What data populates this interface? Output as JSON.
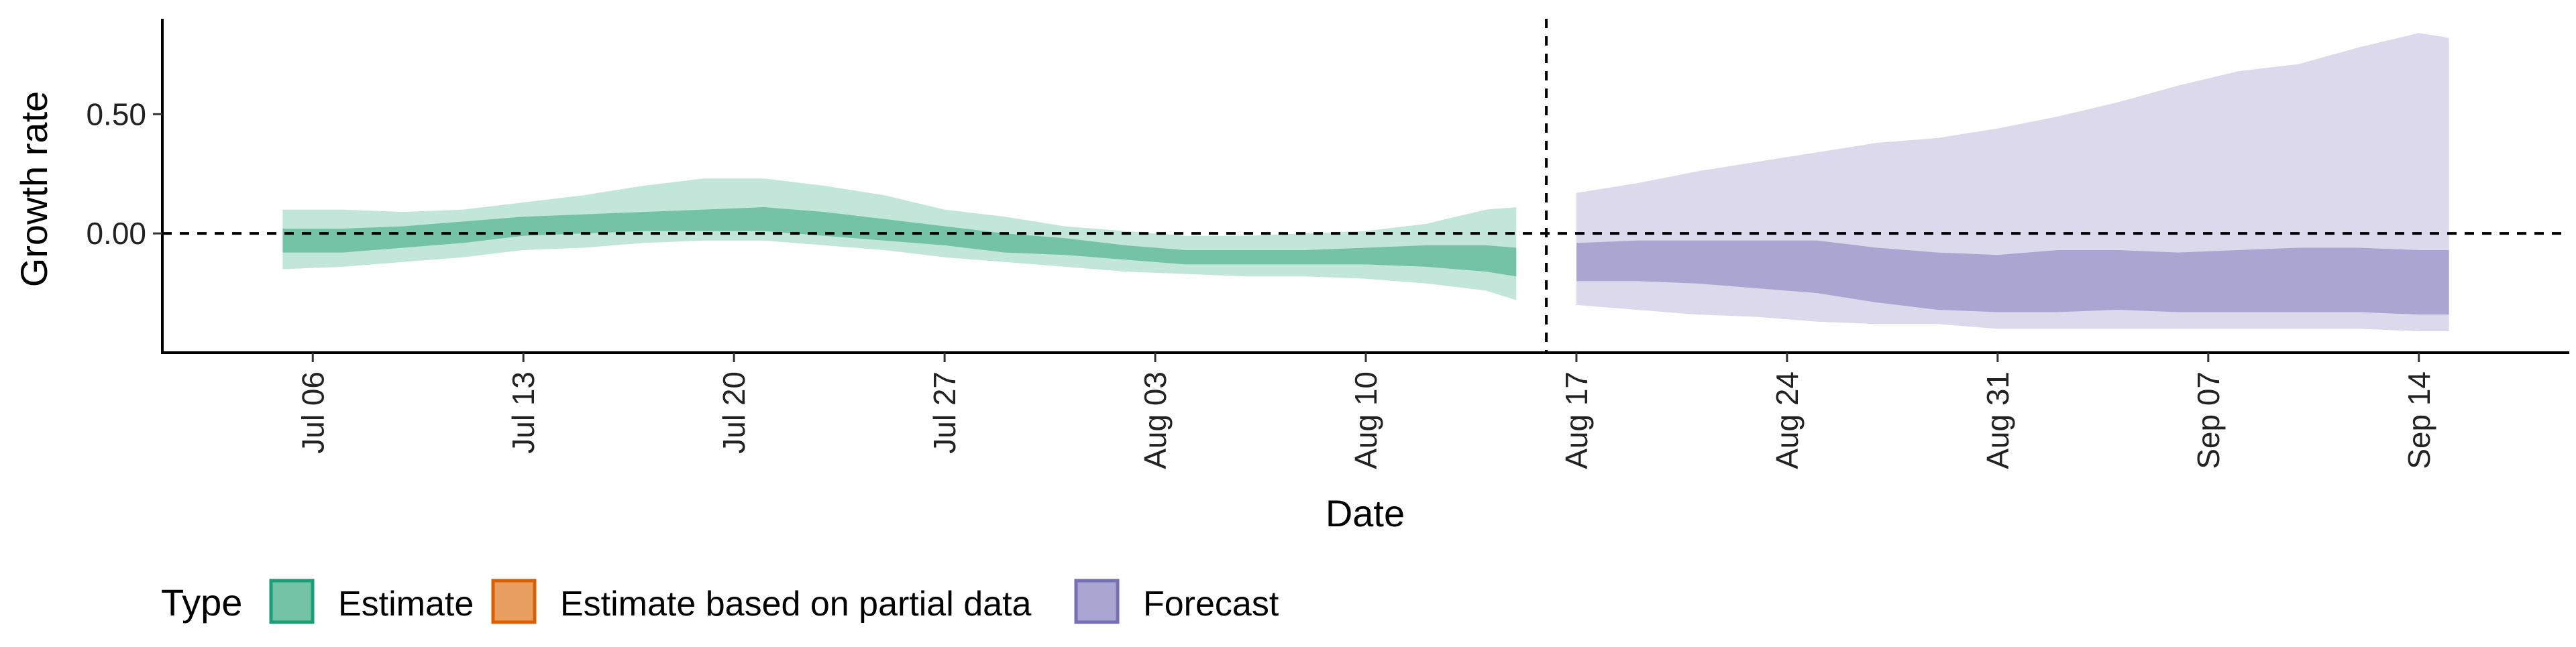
{
  "chart_data": {
    "type": "area",
    "xlabel": "Date",
    "ylabel": "Growth rate",
    "x_axis": {
      "type": "date",
      "range": [
        "2020-07-01",
        "2020-09-19"
      ],
      "ticks": [
        {
          "date": "2020-07-06",
          "label": "Jul 06"
        },
        {
          "date": "2020-07-13",
          "label": "Jul 13"
        },
        {
          "date": "2020-07-20",
          "label": "Jul 20"
        },
        {
          "date": "2020-07-27",
          "label": "Jul 27"
        },
        {
          "date": "2020-08-03",
          "label": "Aug 03"
        },
        {
          "date": "2020-08-10",
          "label": "Aug 10"
        },
        {
          "date": "2020-08-17",
          "label": "Aug 17"
        },
        {
          "date": "2020-08-24",
          "label": "Aug 24"
        },
        {
          "date": "2020-08-31",
          "label": "Aug 31"
        },
        {
          "date": "2020-09-07",
          "label": "Sep 07"
        },
        {
          "date": "2020-09-14",
          "label": "Sep 14"
        }
      ]
    },
    "y_axis": {
      "range": [
        -0.5,
        0.9
      ],
      "ticks": [
        {
          "value": 0.5,
          "label": "0.50"
        },
        {
          "value": 0.0,
          "label": "0.00"
        }
      ]
    },
    "reference_lines": {
      "horizontal_y": 0.0,
      "vertical_date": "2020-08-16"
    },
    "grid": false,
    "legend": {
      "position": "bottom-left",
      "title": "Type",
      "entries": [
        {
          "label": "Estimate",
          "fill": "#74c3a7",
          "border": "#1b9e77"
        },
        {
          "label": "Estimate based on partial data",
          "fill": "#ea9f62",
          "border": "#d95f02"
        },
        {
          "label": "Forecast",
          "fill": "#aaa5d1",
          "border": "#7570b3"
        }
      ]
    },
    "series": [
      {
        "name": "Estimate",
        "color_inner": "#74c3a7",
        "color_outer": "#c3e6da",
        "points": [
          {
            "date": "2020-07-05",
            "lower90": -0.15,
            "lower50": -0.08,
            "upper50": 0.02,
            "upper90": 0.1
          },
          {
            "date": "2020-07-07",
            "lower90": -0.14,
            "lower50": -0.08,
            "upper50": 0.02,
            "upper90": 0.1
          },
          {
            "date": "2020-07-09",
            "lower90": -0.12,
            "lower50": -0.06,
            "upper50": 0.03,
            "upper90": 0.09
          },
          {
            "date": "2020-07-11",
            "lower90": -0.1,
            "lower50": -0.04,
            "upper50": 0.05,
            "upper90": 0.1
          },
          {
            "date": "2020-07-13",
            "lower90": -0.07,
            "lower50": -0.01,
            "upper50": 0.07,
            "upper90": 0.13
          },
          {
            "date": "2020-07-15",
            "lower90": -0.06,
            "lower50": 0.0,
            "upper50": 0.08,
            "upper90": 0.16
          },
          {
            "date": "2020-07-17",
            "lower90": -0.04,
            "lower50": 0.01,
            "upper50": 0.09,
            "upper90": 0.2
          },
          {
            "date": "2020-07-19",
            "lower90": -0.03,
            "lower50": 0.01,
            "upper50": 0.1,
            "upper90": 0.23
          },
          {
            "date": "2020-07-21",
            "lower90": -0.03,
            "lower50": 0.01,
            "upper50": 0.11,
            "upper90": 0.23
          },
          {
            "date": "2020-07-23",
            "lower90": -0.05,
            "lower50": -0.01,
            "upper50": 0.09,
            "upper90": 0.2
          },
          {
            "date": "2020-07-25",
            "lower90": -0.07,
            "lower50": -0.03,
            "upper50": 0.06,
            "upper90": 0.16
          },
          {
            "date": "2020-07-27",
            "lower90": -0.1,
            "lower50": -0.05,
            "upper50": 0.03,
            "upper90": 0.1
          },
          {
            "date": "2020-07-29",
            "lower90": -0.12,
            "lower50": -0.08,
            "upper50": 0.0,
            "upper90": 0.07
          },
          {
            "date": "2020-07-31",
            "lower90": -0.14,
            "lower50": -0.09,
            "upper50": -0.02,
            "upper90": 0.03
          },
          {
            "date": "2020-08-02",
            "lower90": -0.16,
            "lower50": -0.11,
            "upper50": -0.05,
            "upper90": 0.01
          },
          {
            "date": "2020-08-04",
            "lower90": -0.17,
            "lower50": -0.13,
            "upper50": -0.07,
            "upper90": -0.01
          },
          {
            "date": "2020-08-06",
            "lower90": -0.18,
            "lower50": -0.13,
            "upper50": -0.07,
            "upper90": -0.01
          },
          {
            "date": "2020-08-08",
            "lower90": -0.18,
            "lower50": -0.13,
            "upper50": -0.07,
            "upper90": 0.0
          },
          {
            "date": "2020-08-10",
            "lower90": -0.19,
            "lower50": -0.13,
            "upper50": -0.06,
            "upper90": 0.01
          },
          {
            "date": "2020-08-12",
            "lower90": -0.21,
            "lower50": -0.14,
            "upper50": -0.05,
            "upper90": 0.04
          },
          {
            "date": "2020-08-14",
            "lower90": -0.24,
            "lower50": -0.16,
            "upper50": -0.05,
            "upper90": 0.1
          },
          {
            "date": "2020-08-15",
            "lower90": -0.28,
            "lower50": -0.18,
            "upper50": -0.06,
            "upper90": 0.11
          }
        ]
      },
      {
        "name": "Forecast",
        "color_inner": "#aaa5d1",
        "color_outer": "#dbd9eb",
        "points": [
          {
            "date": "2020-08-17",
            "lower90": -0.3,
            "lower50": -0.2,
            "upper50": -0.04,
            "upper90": 0.17
          },
          {
            "date": "2020-08-19",
            "lower90": -0.32,
            "lower50": -0.2,
            "upper50": -0.03,
            "upper90": 0.21
          },
          {
            "date": "2020-08-21",
            "lower90": -0.34,
            "lower50": -0.21,
            "upper50": -0.03,
            "upper90": 0.26
          },
          {
            "date": "2020-08-23",
            "lower90": -0.35,
            "lower50": -0.23,
            "upper50": -0.03,
            "upper90": 0.3
          },
          {
            "date": "2020-08-25",
            "lower90": -0.37,
            "lower50": -0.25,
            "upper50": -0.03,
            "upper90": 0.34
          },
          {
            "date": "2020-08-27",
            "lower90": -0.38,
            "lower50": -0.29,
            "upper50": -0.06,
            "upper90": 0.38
          },
          {
            "date": "2020-08-29",
            "lower90": -0.38,
            "lower50": -0.32,
            "upper50": -0.08,
            "upper90": 0.4
          },
          {
            "date": "2020-08-31",
            "lower90": -0.4,
            "lower50": -0.33,
            "upper50": -0.09,
            "upper90": 0.44
          },
          {
            "date": "2020-09-02",
            "lower90": -0.4,
            "lower50": -0.33,
            "upper50": -0.07,
            "upper90": 0.49
          },
          {
            "date": "2020-09-04",
            "lower90": -0.4,
            "lower50": -0.32,
            "upper50": -0.07,
            "upper90": 0.55
          },
          {
            "date": "2020-09-06",
            "lower90": -0.4,
            "lower50": -0.33,
            "upper50": -0.08,
            "upper90": 0.62
          },
          {
            "date": "2020-09-08",
            "lower90": -0.4,
            "lower50": -0.33,
            "upper50": -0.07,
            "upper90": 0.68
          },
          {
            "date": "2020-09-10",
            "lower90": -0.4,
            "lower50": -0.33,
            "upper50": -0.06,
            "upper90": 0.71
          },
          {
            "date": "2020-09-12",
            "lower90": -0.4,
            "lower50": -0.33,
            "upper50": -0.06,
            "upper90": 0.78
          },
          {
            "date": "2020-09-14",
            "lower90": -0.41,
            "lower50": -0.34,
            "upper50": -0.07,
            "upper90": 0.84
          },
          {
            "date": "2020-09-15",
            "lower90": -0.41,
            "lower50": -0.34,
            "upper50": -0.07,
            "upper90": 0.82
          }
        ]
      }
    ]
  }
}
